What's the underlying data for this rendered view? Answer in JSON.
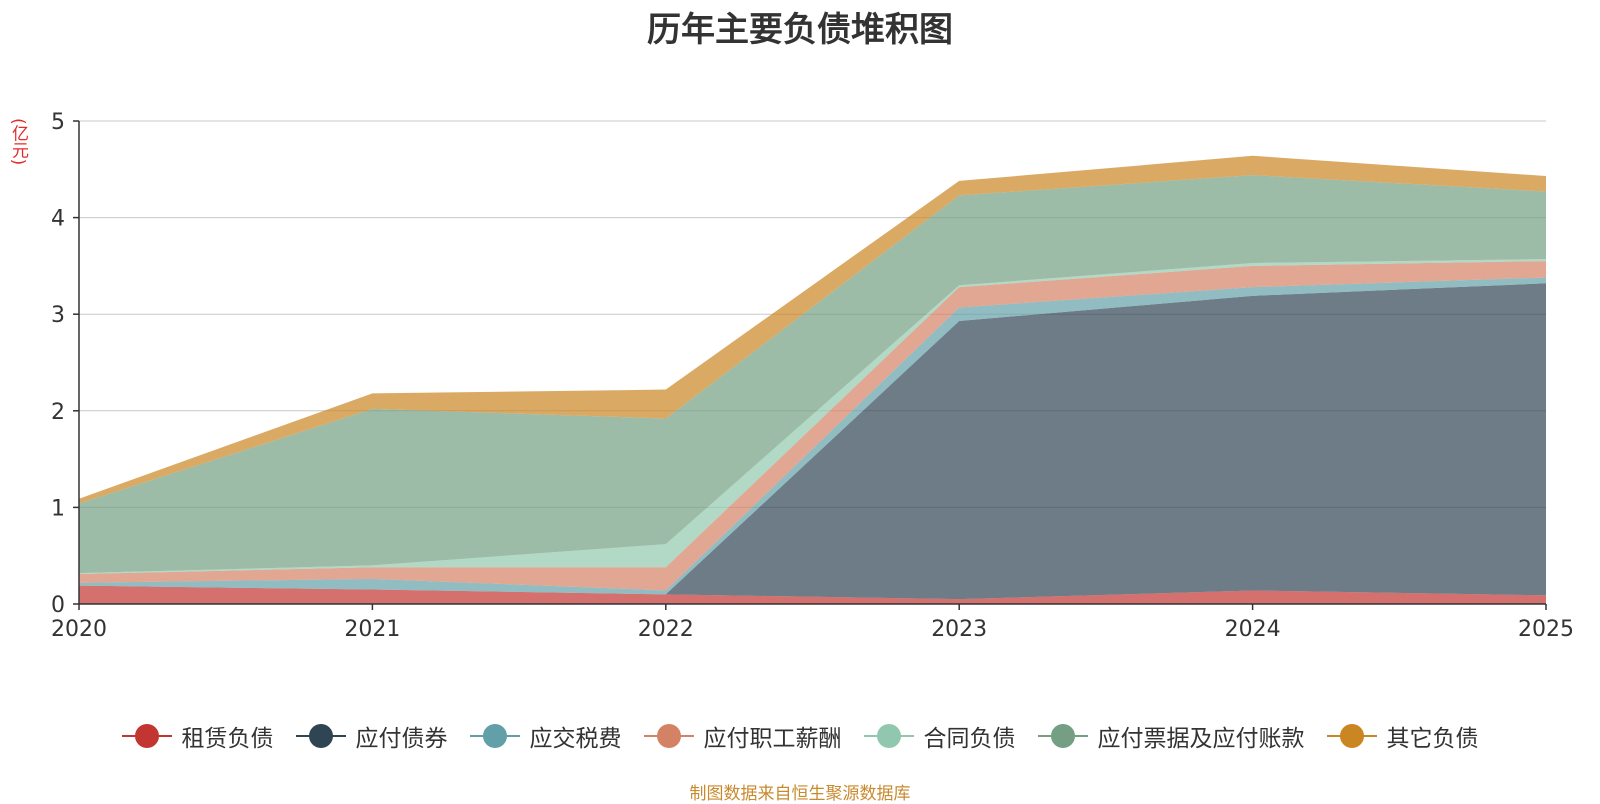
{
  "chart_data": {
    "type": "area",
    "stacked": true,
    "title": "历年主要负债堆积图",
    "ylabel": "(亿元)",
    "xlabel": "",
    "categories": [
      "2020",
      "2021",
      "2022",
      "2023",
      "2024",
      "2025"
    ],
    "ylim": [
      0,
      5
    ],
    "yticks": [
      0,
      1,
      2,
      3,
      4,
      5
    ],
    "grid": true,
    "legend_position": "bottom",
    "series": [
      {
        "name": "租赁负债",
        "color": "#c23531",
        "values": [
          0.19,
          0.15,
          0.1,
          0.05,
          0.14,
          0.09
        ]
      },
      {
        "name": "应付债券",
        "color": "#2f4554",
        "values": [
          0.0,
          0.0,
          0.0,
          2.88,
          3.05,
          3.23
        ]
      },
      {
        "name": "应交税费",
        "color": "#61a0a8",
        "values": [
          0.03,
          0.11,
          0.04,
          0.14,
          0.09,
          0.06
        ]
      },
      {
        "name": "应付职工薪酬",
        "color": "#d48265",
        "values": [
          0.09,
          0.12,
          0.24,
          0.21,
          0.22,
          0.17
        ]
      },
      {
        "name": "合同负债",
        "color": "#91c7ae",
        "values": [
          0.01,
          0.02,
          0.24,
          0.02,
          0.03,
          0.02
        ]
      },
      {
        "name": "应付票据及应付账款",
        "color": "#749f83",
        "values": [
          0.72,
          1.62,
          1.3,
          0.93,
          0.91,
          0.7
        ]
      },
      {
        "name": "其它负债",
        "color": "#ca8622",
        "values": [
          0.05,
          0.16,
          0.3,
          0.15,
          0.2,
          0.16
        ]
      }
    ]
  },
  "footer": {
    "source": "制图数据来自恒生聚源数据库"
  }
}
